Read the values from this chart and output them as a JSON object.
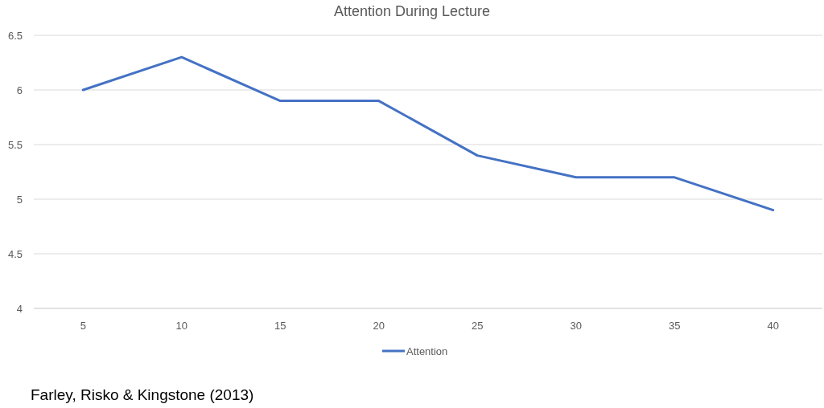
{
  "chart_data": {
    "type": "line",
    "title": "Attention During Lecture",
    "categories": [
      "5",
      "10",
      "15",
      "20",
      "25",
      "30",
      "35",
      "40"
    ],
    "series": [
      {
        "name": "Attention",
        "color": "#4472c4",
        "values": [
          6.0,
          6.3,
          5.9,
          5.9,
          5.4,
          5.2,
          5.2,
          4.9
        ]
      }
    ],
    "ylim": [
      4,
      6.5
    ],
    "yticks": [
      {
        "value": 4,
        "label": "4"
      },
      {
        "value": 4.5,
        "label": "4.5"
      },
      {
        "value": 5,
        "label": "5"
      },
      {
        "value": 5.5,
        "label": "5.5"
      },
      {
        "value": 6,
        "label": "6"
      },
      {
        "value": 6.5,
        "label": "6.5"
      }
    ],
    "grid": "y",
    "legend": "bottom",
    "marker": "none",
    "line_style": "solid",
    "annotations": [
      "Farley, Risko & Kingstone (2013)"
    ]
  }
}
